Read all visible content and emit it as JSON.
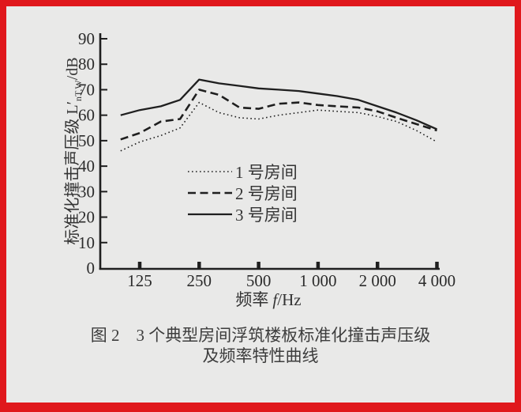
{
  "frame": {
    "border_color": "#e0181c",
    "background_color": "#e9e9e8",
    "ink_color": "#1f1f1f"
  },
  "chart_data": {
    "type": "line",
    "title": "",
    "x_axis": {
      "label_cn": "频率",
      "label_var": "f",
      "label_unit": "/Hz",
      "scale": "log",
      "tick_values": [
        125,
        250,
        500,
        1000,
        2000,
        4000
      ],
      "tick_labels": [
        "125",
        "250",
        "500",
        "1 000",
        "2 000",
        "4 000"
      ]
    },
    "y_axis": {
      "label_cn": "标准化撞击声压级",
      "label_sym": "L′",
      "label_sub": "nT,W",
      "label_unit": "/dB",
      "min": 0,
      "max": 90,
      "tick_step": 10,
      "tick_labels": [
        "0",
        "10",
        "20",
        "30",
        "40",
        "50",
        "60",
        "70",
        "80",
        "90"
      ]
    },
    "grid": false,
    "legend_position": "inside-bottom-center",
    "frequencies": [
      100,
      125,
      160,
      200,
      250,
      315,
      400,
      500,
      630,
      800,
      1000,
      1250,
      1600,
      2000,
      2500,
      3150,
      4000
    ],
    "series": [
      {
        "name": "1 号房间",
        "style": "dotted",
        "values": [
          46,
          49.5,
          52,
          55,
          65,
          61,
          59,
          58.5,
          60,
          61,
          62,
          61.5,
          61,
          59.5,
          57.5,
          54,
          49.5
        ]
      },
      {
        "name": "2 号房间",
        "style": "dashed",
        "values": [
          50.5,
          53,
          57.5,
          58.5,
          70,
          68,
          63,
          62.5,
          64.5,
          65,
          64,
          63.5,
          63,
          61.5,
          59,
          56.5,
          54
        ]
      },
      {
        "name": "3 号房间",
        "style": "solid",
        "values": [
          60,
          62,
          63.5,
          66,
          74,
          72.5,
          71.5,
          70.5,
          70,
          69.5,
          68.5,
          67.5,
          66,
          63.5,
          61,
          58,
          54.5
        ]
      }
    ]
  },
  "caption": {
    "line1": "图 2　3 个典型房间浮筑楼板标准化撞击声压级",
    "line2": "及频率特性曲线"
  }
}
